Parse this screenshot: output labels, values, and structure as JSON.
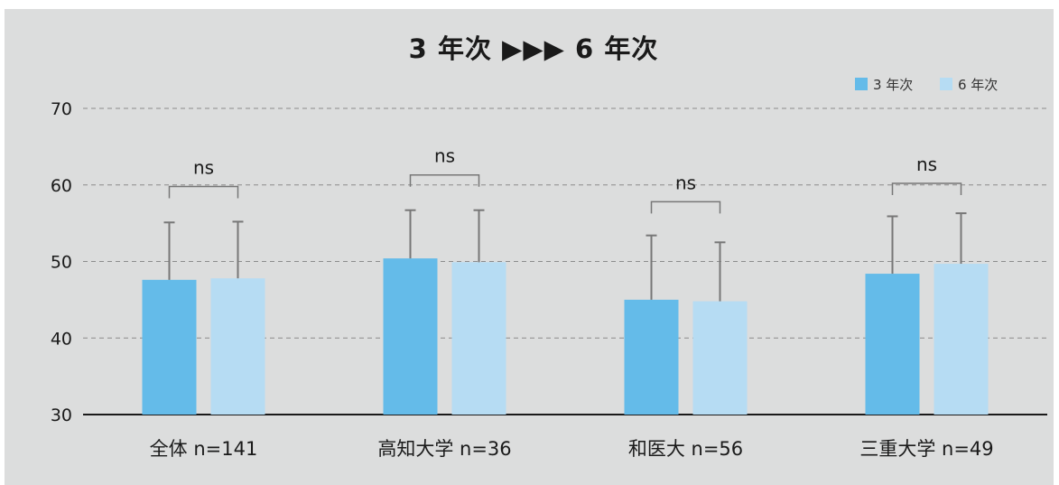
{
  "chart_data": {
    "type": "bar",
    "title": "3 年次 ▶▶▶ 6 年次",
    "categories": [
      "全体 n=141",
      "高知大学 n=36",
      "和医大 n=56",
      "三重大学 n=49"
    ],
    "series": [
      {
        "name": "3 年次",
        "color": "#64bbe9",
        "values": [
          47.6,
          50.4,
          45.0,
          48.4
        ],
        "error": [
          7.5,
          6.3,
          8.4,
          7.5
        ]
      },
      {
        "name": "6 年次",
        "color": "#b6dcf3",
        "values": [
          47.8,
          49.9,
          44.8,
          49.7
        ],
        "error": [
          7.4,
          6.8,
          7.7,
          6.6
        ]
      }
    ],
    "significance": [
      "ns",
      "ns",
      "ns",
      "ns"
    ],
    "bracket_levels": [
      59.8,
      61.3,
      57.8,
      60.2
    ],
    "ylim": [
      30,
      70
    ],
    "yticks": [
      30,
      40,
      50,
      60,
      70
    ],
    "grid": true,
    "legend": "top-right",
    "xlabel": "",
    "ylabel": ""
  }
}
